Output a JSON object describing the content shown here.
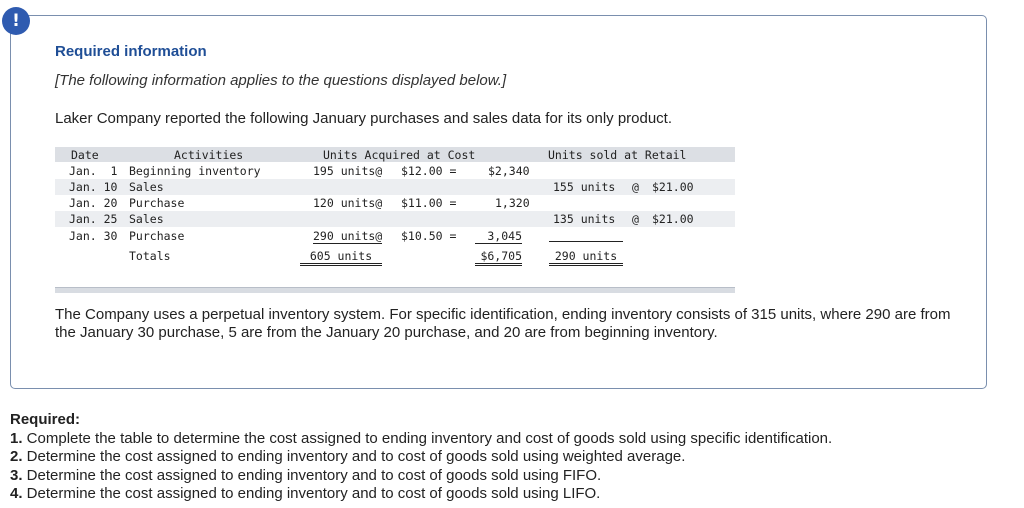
{
  "alert": {
    "symbol": "!"
  },
  "info": {
    "title": "Required information",
    "note": "[The following information applies to the questions displayed below.]",
    "intro": "Laker Company reported the following January purchases and sales data for its only product."
  },
  "table": {
    "headers": {
      "date": "Date",
      "activities": "Activities",
      "acquired": "Units Acquired at Cost",
      "sold": "Units sold at Retail"
    },
    "rows": [
      {
        "date": "Jan.  1",
        "activity": "Beginning inventory",
        "acq_units": "195 units@",
        "acq_price": "$12.00 =",
        "acq_total": "$2,340",
        "sold_units": "",
        "sold_at": "",
        "sold_price": ""
      },
      {
        "date": "Jan. 10",
        "activity": "Sales",
        "acq_units": "",
        "acq_price": "",
        "acq_total": "",
        "sold_units": "155 units",
        "sold_at": "@",
        "sold_price": "$21.00"
      },
      {
        "date": "Jan. 20",
        "activity": "Purchase",
        "acq_units": "120 units@",
        "acq_price": "$11.00 =",
        "acq_total": "1,320",
        "sold_units": "",
        "sold_at": "",
        "sold_price": ""
      },
      {
        "date": "Jan. 25",
        "activity": "Sales",
        "acq_units": "",
        "acq_price": "",
        "acq_total": "",
        "sold_units": "135 units",
        "sold_at": "@",
        "sold_price": "$21.00"
      },
      {
        "date": "Jan. 30",
        "activity": "Purchase",
        "acq_units": "290 units@",
        "acq_price": "$10.50 =",
        "acq_total": "3,045",
        "sold_units": "",
        "sold_at": "",
        "sold_price": ""
      }
    ],
    "totals": {
      "label": "Totals",
      "acq_units": "605 units",
      "acq_total": "$6,705",
      "sold_units": "290 units"
    }
  },
  "paragraph": "The Company uses a perpetual inventory system. For specific identification, ending inventory consists of 315 units, where 290 are from the January 30 purchase, 5 are from the January 20 purchase, and 20 are from beginning inventory.",
  "required": {
    "heading": "Required:",
    "items": [
      {
        "num": "1.",
        "text": " Complete the table to determine the cost assigned to ending inventory and cost of goods sold using specific identification."
      },
      {
        "num": "2.",
        "text": " Determine the cost assigned to ending inventory and to cost of goods sold using weighted average."
      },
      {
        "num": "3.",
        "text": " Determine the cost assigned to ending inventory and to cost of goods sold using FIFO."
      },
      {
        "num": "4.",
        "text": " Determine the cost assigned to ending inventory and to cost of goods sold using LIFO."
      }
    ]
  }
}
